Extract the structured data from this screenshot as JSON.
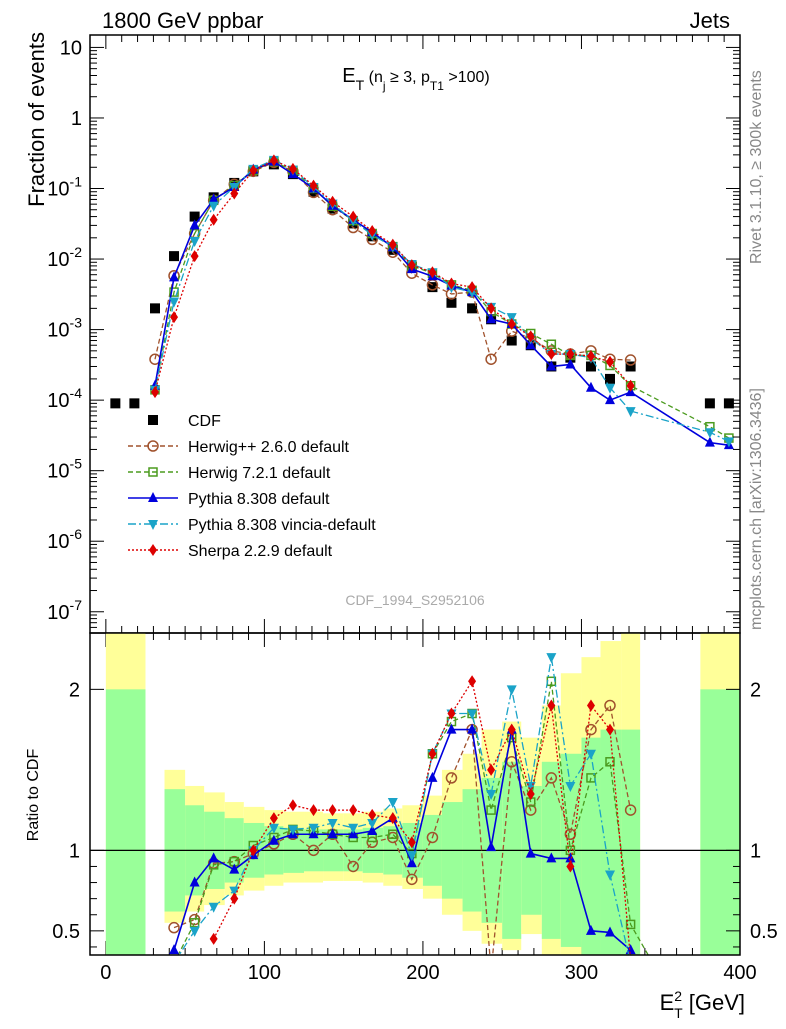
{
  "header": {
    "left": "1800 GeV ppbar",
    "right": "Jets",
    "side_top": "Rivet 3.1.10, ≥ 300k events",
    "side_bottom": "mcplots.cern.ch [arXiv:1306.3436]",
    "watermark": "CDF_1994_S2952106"
  },
  "chart_data": [
    {
      "type": "scatter",
      "panel": "main",
      "title": "E_T (n_j ≥ 3, p_T1 >100)",
      "title_parts": {
        "main": "E",
        "sub": "T",
        "open": " (n",
        "sub2": "j",
        "ge": " ≥ 3, p",
        "sub3": "T1",
        "close": " >100)"
      },
      "ylabel": "Fraction of events",
      "yscale": "log",
      "ylim": [
        5e-08,
        15
      ],
      "xlim": [
        -10,
        400
      ],
      "y_tick_labels": [
        "10",
        "1",
        "10^-1",
        "10^-2",
        "10^-3",
        "10^-4",
        "10^-5",
        "10^-6",
        "10^-7"
      ],
      "legend_position": "lower-left",
      "series": [
        {
          "name": "CDF",
          "color": "#000000",
          "marker": "square-filled",
          "x": [
            6,
            18,
            31,
            43,
            56,
            68,
            81,
            93,
            106,
            118,
            131,
            143,
            156,
            168,
            181,
            193,
            206,
            218,
            231,
            243,
            256,
            268,
            281,
            293,
            306,
            318,
            331,
            381,
            393
          ],
          "y": [
            9e-05,
            9e-05,
            0.002,
            0.011,
            0.04,
            0.075,
            0.12,
            0.175,
            0.22,
            0.16,
            0.09,
            0.052,
            0.032,
            0.021,
            0.0135,
            0.0078,
            0.004,
            0.0024,
            0.002,
            0.0014,
            0.0007,
            0.0006,
            0.0003,
            0.0004,
            0.0003,
            0.0002,
            0.0003,
            9e-05,
            9e-05
          ]
        },
        {
          "name": "Herwig++ 2.6.0 default",
          "color": "#a0522d",
          "marker": "circle-open",
          "line": "dashed",
          "x": [
            31,
            43,
            56,
            68,
            81,
            93,
            106,
            118,
            131,
            143,
            156,
            168,
            181,
            193,
            206,
            218,
            231,
            243,
            256,
            268,
            281,
            293,
            306,
            318,
            331
          ],
          "y": [
            0.00038,
            0.0058,
            0.023,
            0.068,
            0.115,
            0.175,
            0.235,
            0.175,
            0.088,
            0.05,
            0.028,
            0.019,
            0.0125,
            0.0063,
            0.0043,
            0.0032,
            0.0034,
            0.00038,
            0.00095,
            0.00075,
            0.0005,
            0.00045,
            0.0005,
            0.00038,
            0.00037
          ]
        },
        {
          "name": "Herwig 7.2.1 default",
          "color": "#4b9b1e",
          "marker": "square-open",
          "line": "dashed",
          "x": [
            31,
            43,
            56,
            68,
            81,
            93,
            106,
            118,
            131,
            143,
            156,
            168,
            181,
            193,
            206,
            218,
            231,
            243,
            256,
            268,
            281,
            293,
            306,
            318,
            331,
            381,
            393
          ],
          "y": [
            0.00014,
            0.0034,
            0.023,
            0.068,
            0.11,
            0.18,
            0.24,
            0.18,
            0.1,
            0.056,
            0.035,
            0.023,
            0.015,
            0.008,
            0.0063,
            0.0043,
            0.0036,
            0.0018,
            0.0012,
            0.00088,
            0.00062,
            0.00043,
            0.00043,
            0.00031,
            0.00016,
            4.2e-05,
            2.9e-05
          ]
        },
        {
          "name": "Pythia 8.308 default",
          "color": "#0000dd",
          "marker": "triangle-up-filled",
          "line": "solid",
          "x": [
            31,
            43,
            56,
            68,
            81,
            93,
            106,
            118,
            131,
            143,
            156,
            168,
            181,
            193,
            206,
            218,
            231,
            243,
            256,
            268,
            281,
            293,
            306,
            318,
            331,
            381,
            393
          ],
          "y": [
            0.00016,
            0.0055,
            0.03,
            0.07,
            0.105,
            0.185,
            0.24,
            0.16,
            0.1,
            0.057,
            0.036,
            0.024,
            0.0147,
            0.0072,
            0.0057,
            0.0042,
            0.0034,
            0.0014,
            0.0012,
            0.0006,
            0.0003,
            0.00032,
            0.00015,
            0.0001,
            0.00013,
            2.5e-05,
            2.3e-05
          ]
        },
        {
          "name": "Pythia 8.308 vincia-default",
          "color": "#1aa3c8",
          "marker": "triangle-down-filled",
          "line": "dashdot",
          "x": [
            31,
            43,
            56,
            68,
            81,
            93,
            106,
            118,
            131,
            143,
            156,
            168,
            181,
            193,
            206,
            218,
            231,
            243,
            256,
            268,
            281,
            293,
            306,
            318,
            331,
            381,
            393
          ],
          "y": [
            0.00014,
            0.0025,
            0.018,
            0.057,
            0.105,
            0.19,
            0.255,
            0.185,
            0.105,
            0.061,
            0.035,
            0.022,
            0.015,
            0.0085,
            0.0065,
            0.004,
            0.0034,
            0.0021,
            0.0015,
            0.00075,
            0.00045,
            0.00045,
            0.0004,
            0.00015,
            7e-05,
            3.5e-05,
            2.6e-05
          ]
        },
        {
          "name": "Sherpa 2.2.9 default",
          "color": "#dd0000",
          "marker": "diamond-filled",
          "line": "dotted",
          "x": [
            31,
            43,
            56,
            68,
            81,
            93,
            106,
            118,
            131,
            143,
            156,
            168,
            181,
            193,
            206,
            218,
            231,
            243,
            256,
            268,
            281,
            293,
            306,
            318,
            331
          ],
          "y": [
            0.00013,
            0.0015,
            0.011,
            0.036,
            0.085,
            0.18,
            0.25,
            0.19,
            0.11,
            0.065,
            0.04,
            0.025,
            0.016,
            0.0082,
            0.0065,
            0.0045,
            0.004,
            0.002,
            0.0012,
            0.0008,
            0.00045,
            0.00045,
            0.00042,
            0.00035,
            0.00016
          ]
        }
      ]
    },
    {
      "type": "line",
      "panel": "ratio",
      "xlabel": "E_T^2 [GeV]",
      "xlabel_parts": {
        "main": "E",
        "sup": "2",
        "sub": "T",
        "unit": " [GeV]"
      },
      "ylabel": "Ratio to CDF",
      "ylim": [
        0.35,
        2.35
      ],
      "xlim": [
        -10,
        400
      ],
      "x_ticks": [
        0,
        100,
        200,
        300,
        400
      ],
      "y_ticks": [
        0.5,
        1,
        2
      ],
      "reference_line": 1,
      "uncertainty_bands": {
        "bin_edges": [
          0,
          25,
          37,
          50,
          62,
          75,
          87,
          100,
          112,
          125,
          137,
          150,
          162,
          175,
          187,
          200,
          212,
          225,
          237,
          250,
          262,
          275,
          287,
          300,
          312,
          325,
          337,
          375,
          400
        ],
        "stat_color": "#99ff99",
        "syst_color": "#ffff99",
        "stat": [
          [
            0.35,
            2.0
          ],
          [
            0.35,
            0.35
          ],
          [
            0.62,
            1.38
          ],
          [
            0.72,
            1.28
          ],
          [
            0.76,
            1.24
          ],
          [
            0.8,
            1.2
          ],
          [
            0.83,
            1.17
          ],
          [
            0.85,
            1.15
          ],
          [
            0.86,
            1.14
          ],
          [
            0.87,
            1.13
          ],
          [
            0.87,
            1.13
          ],
          [
            0.87,
            1.13
          ],
          [
            0.86,
            1.14
          ],
          [
            0.85,
            1.15
          ],
          [
            0.83,
            1.17
          ],
          [
            0.78,
            1.22
          ],
          [
            0.7,
            1.3
          ],
          [
            0.62,
            1.38
          ],
          [
            0.55,
            1.45
          ],
          [
            0.45,
            1.55
          ],
          [
            0.6,
            1.4
          ],
          [
            0.45,
            1.55
          ],
          [
            0.4,
            1.6
          ],
          [
            0.35,
            1.7
          ],
          [
            0.35,
            1.75
          ],
          [
            0.35,
            1.75
          ],
          [
            0.35,
            0.35
          ],
          [
            0.35,
            2.0
          ]
        ],
        "syst": [
          [
            0.35,
            2.35
          ],
          [
            0.35,
            0.35
          ],
          [
            0.55,
            1.5
          ],
          [
            0.62,
            1.4
          ],
          [
            0.66,
            1.36
          ],
          [
            0.72,
            1.3
          ],
          [
            0.75,
            1.27
          ],
          [
            0.78,
            1.25
          ],
          [
            0.8,
            1.24
          ],
          [
            0.8,
            1.24
          ],
          [
            0.81,
            1.23
          ],
          [
            0.81,
            1.23
          ],
          [
            0.8,
            1.24
          ],
          [
            0.78,
            1.26
          ],
          [
            0.76,
            1.28
          ],
          [
            0.7,
            1.34
          ],
          [
            0.6,
            1.5
          ],
          [
            0.5,
            1.6
          ],
          [
            0.42,
            1.75
          ],
          [
            0.38,
            1.8
          ],
          [
            0.48,
            1.7
          ],
          [
            0.35,
            1.9
          ],
          [
            0.35,
            2.1
          ],
          [
            0.35,
            2.2
          ],
          [
            0.35,
            2.3
          ],
          [
            0.35,
            2.35
          ],
          [
            0.35,
            0.35
          ],
          [
            0.35,
            2.35
          ]
        ]
      },
      "series": [
        {
          "name": "Herwig++ 2.6.0 default",
          "color": "#a0522d",
          "x": [
            43,
            56,
            68,
            81,
            93,
            106,
            118,
            131,
            143,
            156,
            168,
            181,
            193,
            206,
            218,
            231,
            243,
            256,
            268,
            281,
            293,
            306,
            318,
            331
          ],
          "y": [
            0.52,
            0.57,
            0.92,
            0.93,
            0.98,
            1.04,
            1.1,
            1.0,
            1.1,
            0.9,
            1.05,
            1.08,
            0.82,
            1.08,
            1.45,
            1.75,
            0.25,
            1.55,
            1.25,
            1.45,
            1.1,
            1.75,
            1.9,
            1.25
          ]
        },
        {
          "name": "Herwig 7.2.1 default",
          "color": "#4b9b1e",
          "x": [
            43,
            56,
            68,
            81,
            93,
            106,
            118,
            131,
            143,
            156,
            168,
            181,
            193,
            206,
            218,
            231,
            243,
            256,
            268,
            281,
            293,
            306,
            318,
            331,
            345
          ],
          "y": [
            0.3,
            0.55,
            0.91,
            0.93,
            1.03,
            1.08,
            1.13,
            1.12,
            1.1,
            1.08,
            1.08,
            1.1,
            0.98,
            1.6,
            1.8,
            1.85,
            1.25,
            1.7,
            1.3,
            2.05,
            1.0,
            1.45,
            1.55,
            0.54,
            0.3
          ]
        },
        {
          "name": "Pythia 8.308 default",
          "color": "#0000dd",
          "x": [
            43,
            56,
            68,
            81,
            93,
            106,
            118,
            131,
            143,
            156,
            168,
            181,
            193,
            206,
            218,
            231,
            243,
            256,
            268,
            281,
            293,
            306,
            318,
            331
          ],
          "y": [
            0.38,
            0.8,
            0.95,
            0.88,
            0.97,
            1.06,
            1.1,
            1.1,
            1.1,
            1.1,
            1.12,
            1.2,
            0.92,
            1.45,
            1.75,
            1.75,
            1.02,
            1.75,
            0.98,
            0.95,
            0.95,
            0.5,
            0.49,
            0.38
          ]
        },
        {
          "name": "Pythia 8.308 vincia-default",
          "color": "#1aa3c8",
          "x": [
            43,
            56,
            68,
            81,
            93,
            106,
            118,
            131,
            143,
            156,
            168,
            181,
            193,
            206,
            218,
            231,
            243,
            256,
            268,
            281,
            293,
            306,
            318,
            331
          ],
          "y": [
            0.3,
            0.5,
            0.65,
            0.75,
            1.0,
            1.14,
            1.13,
            1.14,
            1.17,
            1.14,
            1.17,
            1.3,
            0.97,
            1.6,
            1.85,
            1.85,
            1.35,
            2.0,
            1.4,
            2.2,
            1.4,
            1.6,
            0.85,
            0.3
          ]
        },
        {
          "name": "Sherpa 2.2.9 default",
          "color": "#dd0000",
          "x": [
            68,
            81,
            93,
            106,
            118,
            131,
            143,
            156,
            168,
            181,
            193,
            206,
            218,
            231,
            243,
            256,
            268,
            281,
            293,
            306,
            318,
            331
          ],
          "y": [
            0.45,
            0.7,
            1.0,
            1.2,
            1.28,
            1.25,
            1.25,
            1.25,
            1.22,
            1.2,
            1.05,
            1.6,
            1.85,
            2.05,
            1.5,
            1.75,
            1.35,
            1.9,
            0.9,
            1.9,
            1.75,
            0.32
          ]
        }
      ]
    }
  ]
}
